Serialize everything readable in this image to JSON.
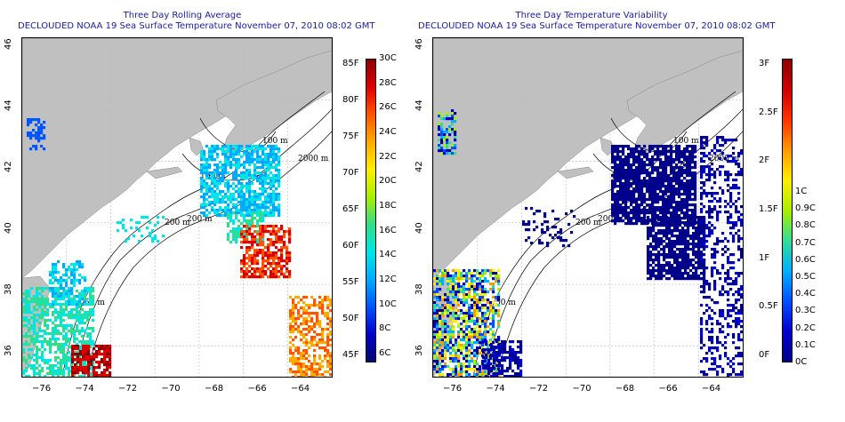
{
  "left_panel": {
    "title_line1": "Three Day Rolling Average",
    "title_line2": "DECLOUDED NOAA 19 Sea Surface Temperature November 07, 2010 08:02 GMT",
    "colorbar_f": [
      "85F",
      "80F",
      "75F",
      "70F",
      "65F",
      "60F",
      "55F",
      "50F",
      "45F"
    ],
    "colorbar_c": [
      "30C",
      "28C",
      "26C",
      "24C",
      "22C",
      "20C",
      "18C",
      "16C",
      "14C",
      "12C",
      "10C",
      "8C",
      "6C"
    ]
  },
  "right_panel": {
    "title_line1": "Three Day Temperature Variability",
    "title_line2": "DECLOUDED NOAA 19 Sea Surface Temperature November 07, 2010 08:02 GMT",
    "colorbar_f": [
      "3F",
      "2.5F",
      "2F",
      "1.5F",
      "1F",
      "0.5F",
      "0F"
    ],
    "colorbar_c": [
      "1C",
      "0.9C",
      "0.8C",
      "0.7C",
      "0.6C",
      "0.5C",
      "0.4C",
      "0.3C",
      "0.2C",
      "0.1C",
      "0C"
    ]
  },
  "axes": {
    "lon_labels": [
      "−76",
      "−74",
      "−72",
      "−70",
      "−68",
      "−66",
      "−64"
    ],
    "lat_labels": [
      "46",
      "44",
      "42",
      "40",
      "38",
      "36"
    ]
  },
  "contour_labels": [
    "100 m",
    "2000 m",
    "100 m",
    "200 m",
    "200 m",
    "50 m"
  ],
  "colors": {
    "land": "#c0c0c0",
    "title": "#1a1aa6",
    "contour": "#000000",
    "sst_scale": [
      "#08086e",
      "#0000cc",
      "#0055ff",
      "#00aaff",
      "#00e5e5",
      "#33dd88",
      "#aaee00",
      "#ffee00",
      "#ffaa00",
      "#ff5500",
      "#dd0000",
      "#8b0000"
    ],
    "var_scale": [
      "#00008b",
      "#0000cc",
      "#0050ff",
      "#00b0ff",
      "#33dd99",
      "#aaee00",
      "#ffee00",
      "#ff9900",
      "#ff3300",
      "#cc0000",
      "#8b0000"
    ]
  }
}
